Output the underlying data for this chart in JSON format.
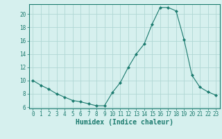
{
  "x": [
    0,
    1,
    2,
    3,
    4,
    5,
    6,
    7,
    8,
    9,
    10,
    11,
    12,
    13,
    14,
    15,
    16,
    17,
    18,
    19,
    20,
    21,
    22,
    23
  ],
  "y": [
    10,
    9.3,
    8.7,
    8.0,
    7.5,
    7.0,
    6.8,
    6.5,
    6.2,
    6.2,
    8.2,
    9.7,
    12.0,
    14.0,
    15.5,
    18.5,
    21.0,
    21.0,
    20.5,
    16.2,
    10.8,
    9.0,
    8.3,
    7.8
  ],
  "line_color": "#1a7a6e",
  "marker": "D",
  "markersize": 2.2,
  "bg_color": "#d6f0ee",
  "grid_color": "#b0d8d4",
  "xlabel": "Humidex (Indice chaleur)",
  "ylim": [
    5.8,
    21.5
  ],
  "yticks": [
    6,
    8,
    10,
    12,
    14,
    16,
    18,
    20
  ],
  "xlim": [
    -0.5,
    23.5
  ],
  "xticks": [
    0,
    1,
    2,
    3,
    4,
    5,
    6,
    7,
    8,
    9,
    10,
    11,
    12,
    13,
    14,
    15,
    16,
    17,
    18,
    19,
    20,
    21,
    22,
    23
  ],
  "tick_fontsize": 5.5,
  "xlabel_fontsize": 7.0
}
